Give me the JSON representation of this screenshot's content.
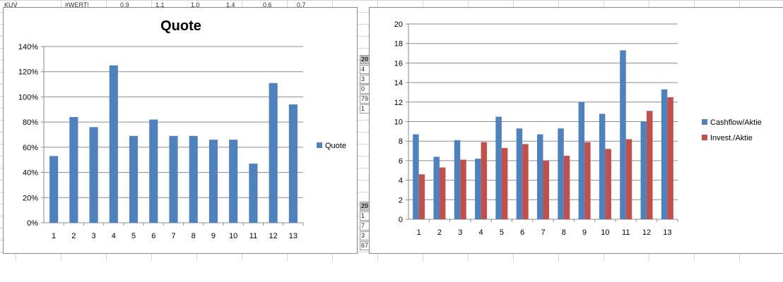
{
  "sheet": {
    "top_cells": [
      "KUV",
      "#WERT!",
      "0,9",
      "1,1",
      "1,0",
      "1,4",
      "0,6",
      "0,7"
    ],
    "side_cells_upper": [
      "20",
      "4",
      "3",
      "0",
      "79",
      "1"
    ],
    "side_cells_lower": [
      "20",
      "1",
      "7",
      "3",
      "67"
    ]
  },
  "colors": {
    "blue": "#4f81bd",
    "red": "#c0504d",
    "grid": "#8c8c8c"
  },
  "chart_data": [
    {
      "type": "bar",
      "title": "Quote",
      "categories": [
        "1",
        "2",
        "3",
        "4",
        "5",
        "6",
        "7",
        "8",
        "9",
        "10",
        "11",
        "12",
        "13"
      ],
      "series": [
        {
          "name": "Quote",
          "values": [
            53,
            84,
            76,
            125,
            69,
            82,
            69,
            69,
            66,
            66,
            47,
            111,
            94
          ]
        }
      ],
      "ylim": [
        0,
        140
      ],
      "yticks": [
        "0%",
        "20%",
        "40%",
        "60%",
        "80%",
        "100%",
        "120%",
        "140%"
      ],
      "grid": true,
      "legend": "right"
    },
    {
      "type": "bar",
      "title": "",
      "categories": [
        "1",
        "2",
        "3",
        "4",
        "5",
        "6",
        "7",
        "8",
        "9",
        "10",
        "11",
        "12",
        "13"
      ],
      "series": [
        {
          "name": "Cashflow/Aktie",
          "values": [
            8.7,
            6.4,
            8.1,
            6.2,
            10.5,
            9.3,
            8.7,
            9.3,
            12.0,
            10.8,
            17.3,
            10.0,
            13.3
          ]
        },
        {
          "name": "Invest./Aktie",
          "values": [
            4.6,
            5.3,
            6.1,
            7.9,
            7.3,
            7.7,
            6.0,
            6.5,
            7.9,
            7.2,
            8.2,
            11.1,
            12.5
          ]
        }
      ],
      "ylim": [
        0,
        20
      ],
      "yticks": [
        "0",
        "2",
        "4",
        "6",
        "8",
        "10",
        "12",
        "14",
        "16",
        "18",
        "20"
      ],
      "grid": true,
      "legend": "right"
    }
  ]
}
